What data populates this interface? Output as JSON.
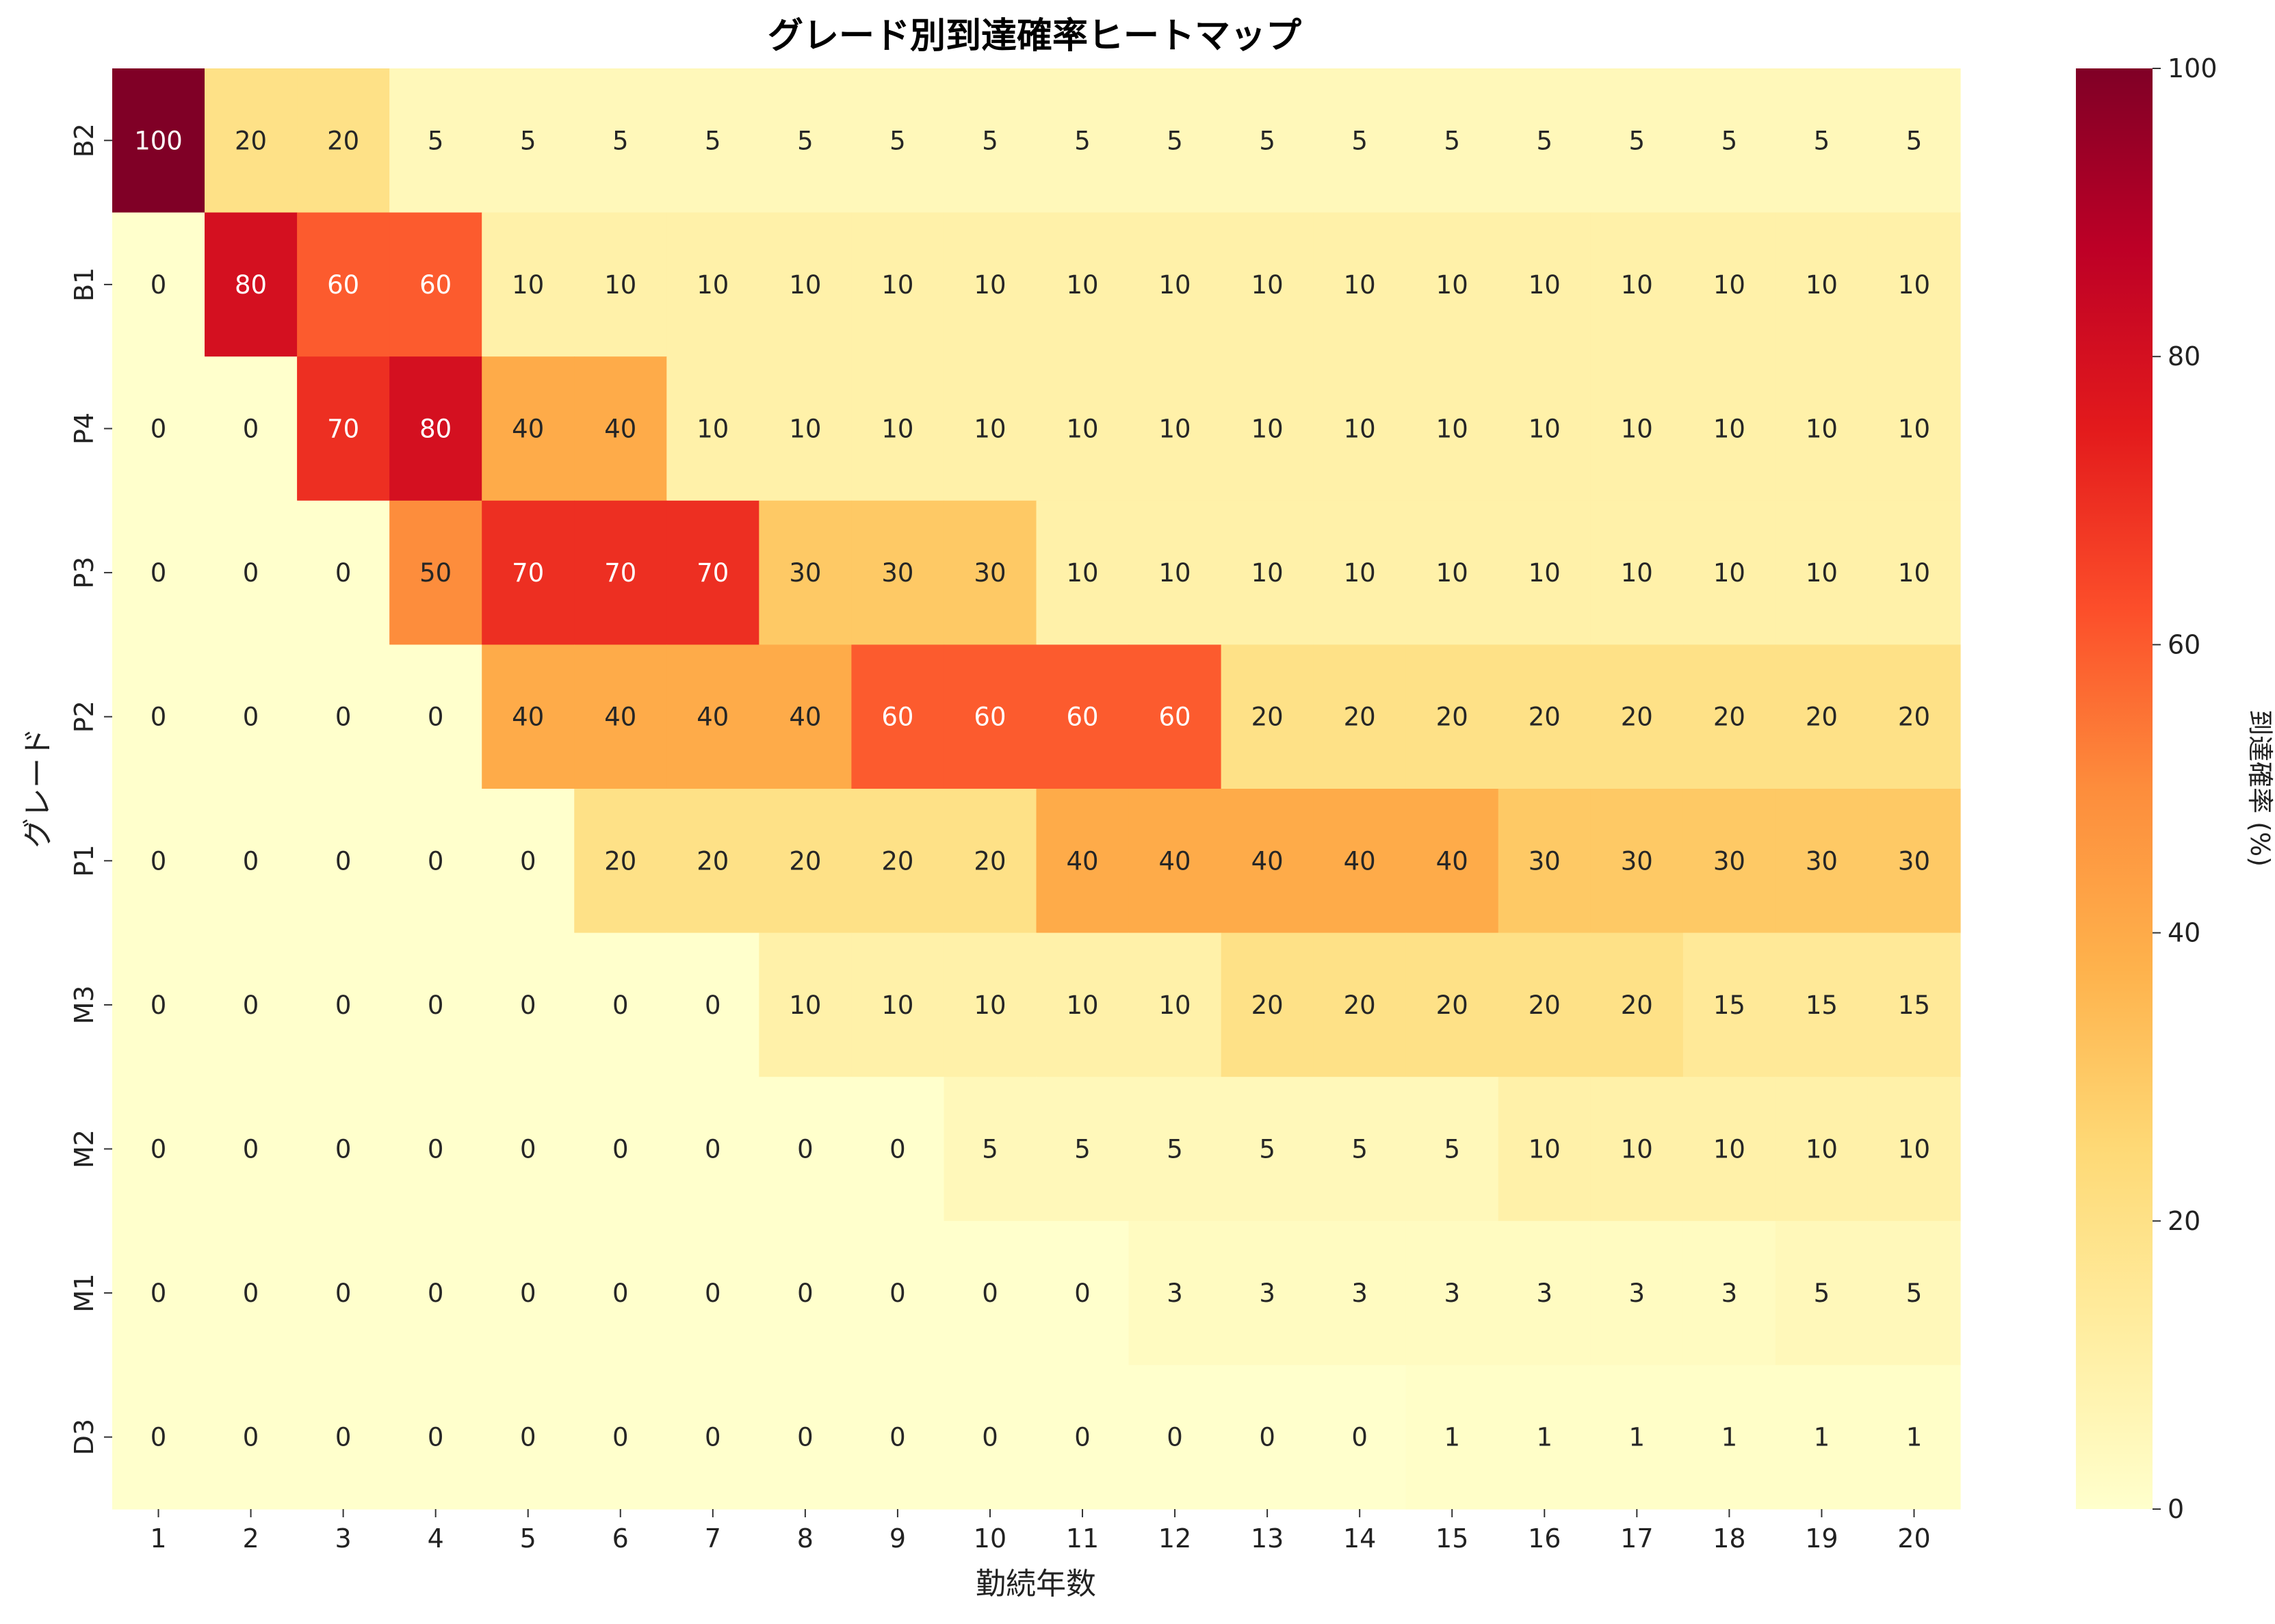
{
  "chart_data": {
    "type": "heatmap",
    "title": "グレード別到達確率ヒートマップ",
    "xlabel": "勤続年数",
    "ylabel": "グレード",
    "colorbar_label": "到達確率 (%)",
    "colorbar_ticks": [
      0,
      20,
      40,
      60,
      80,
      100
    ],
    "vmin": 0,
    "vmax": 100,
    "colormap": "YlOrRd",
    "x": [
      "1",
      "2",
      "3",
      "4",
      "5",
      "6",
      "7",
      "8",
      "9",
      "10",
      "11",
      "12",
      "13",
      "14",
      "15",
      "16",
      "17",
      "18",
      "19",
      "20"
    ],
    "y": [
      "B2",
      "B1",
      "P4",
      "P3",
      "P2",
      "P1",
      "M3",
      "M2",
      "M1",
      "D3"
    ],
    "values": [
      [
        100,
        20,
        20,
        5,
        5,
        5,
        5,
        5,
        5,
        5,
        5,
        5,
        5,
        5,
        5,
        5,
        5,
        5,
        5,
        5
      ],
      [
        0,
        80,
        60,
        60,
        10,
        10,
        10,
        10,
        10,
        10,
        10,
        10,
        10,
        10,
        10,
        10,
        10,
        10,
        10,
        10
      ],
      [
        0,
        0,
        70,
        80,
        40,
        40,
        10,
        10,
        10,
        10,
        10,
        10,
        10,
        10,
        10,
        10,
        10,
        10,
        10,
        10
      ],
      [
        0,
        0,
        0,
        50,
        70,
        70,
        70,
        30,
        30,
        30,
        10,
        10,
        10,
        10,
        10,
        10,
        10,
        10,
        10,
        10
      ],
      [
        0,
        0,
        0,
        0,
        40,
        40,
        40,
        40,
        60,
        60,
        60,
        60,
        20,
        20,
        20,
        20,
        20,
        20,
        20,
        20
      ],
      [
        0,
        0,
        0,
        0,
        0,
        20,
        20,
        20,
        20,
        20,
        40,
        40,
        40,
        40,
        40,
        30,
        30,
        30,
        30,
        30
      ],
      [
        0,
        0,
        0,
        0,
        0,
        0,
        0,
        10,
        10,
        10,
        10,
        10,
        20,
        20,
        20,
        20,
        20,
        15,
        15,
        15
      ],
      [
        0,
        0,
        0,
        0,
        0,
        0,
        0,
        0,
        0,
        5,
        5,
        5,
        5,
        5,
        5,
        10,
        10,
        10,
        10,
        10
      ],
      [
        0,
        0,
        0,
        0,
        0,
        0,
        0,
        0,
        0,
        0,
        0,
        3,
        3,
        3,
        3,
        3,
        3,
        3,
        5,
        5
      ],
      [
        0,
        0,
        0,
        0,
        0,
        0,
        0,
        0,
        0,
        0,
        0,
        0,
        0,
        0,
        1,
        1,
        1,
        1,
        1,
        1
      ]
    ]
  }
}
